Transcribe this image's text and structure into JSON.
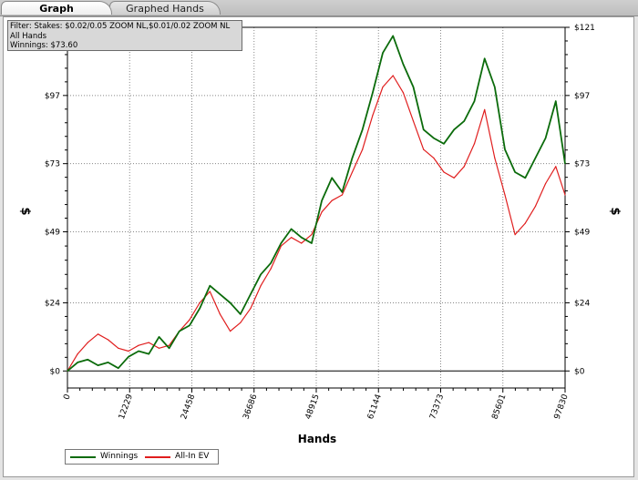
{
  "tabs": [
    {
      "label": "Graph",
      "active": true
    },
    {
      "label": "Graphed Hands",
      "active": false
    }
  ],
  "filter": {
    "lines": [
      "Filter: Stakes: $0.02/0.05 ZOOM NL,$0.01/0.02 ZOOM NL",
      "All Hands",
      "Winnings: $73.60"
    ]
  },
  "colors": {
    "winnings": "#0b6b0b",
    "all_in_ev": "#e01e1e",
    "grid": "#888888",
    "zero_line": "#000000"
  },
  "chart_data": {
    "type": "line",
    "xlabel": "Hands",
    "ylabel": "$",
    "xlim": [
      0,
      97830
    ],
    "ylim": [
      -6,
      121
    ],
    "x_ticks": [
      0,
      12229,
      24458,
      36686,
      48915,
      61144,
      73373,
      85601,
      97830
    ],
    "x_tick_labels": [
      "0",
      "12229",
      "24458",
      "36686",
      "48915",
      "61144",
      "73373",
      "85601",
      "97830"
    ],
    "y_ticks": [
      0,
      24,
      49,
      73,
      97,
      121
    ],
    "y_tick_labels": [
      "$0",
      "$24",
      "$49",
      "$73",
      "$97",
      "$121"
    ],
    "legend_position": "bottom-left",
    "grid": true,
    "series": [
      {
        "name": "Winnings",
        "x": [
          0,
          2000,
          4000,
          6000,
          8000,
          10000,
          12000,
          14000,
          16000,
          18000,
          20000,
          22000,
          24000,
          26000,
          28000,
          30000,
          32000,
          34000,
          36000,
          38000,
          40000,
          42000,
          44000,
          46000,
          48000,
          50000,
          52000,
          54000,
          56000,
          58000,
          60000,
          62000,
          64000,
          66000,
          68000,
          70000,
          72000,
          74000,
          76000,
          78000,
          80000,
          82000,
          84000,
          86000,
          88000,
          90000,
          92000,
          94000,
          96000,
          97830
        ],
        "values": [
          0,
          3,
          4,
          2,
          3,
          1,
          5,
          7,
          6,
          12,
          8,
          14,
          16,
          22,
          30,
          27,
          24,
          20,
          27,
          34,
          38,
          45,
          50,
          47,
          45,
          60,
          68,
          63,
          75,
          85,
          98,
          112,
          118,
          108,
          100,
          85,
          82,
          80,
          85,
          88,
          95,
          110,
          100,
          78,
          70,
          68,
          75,
          82,
          95,
          73
        ]
      },
      {
        "name": "All-In EV",
        "x": [
          0,
          2000,
          4000,
          6000,
          8000,
          10000,
          12000,
          14000,
          16000,
          18000,
          20000,
          22000,
          24000,
          26000,
          28000,
          30000,
          32000,
          34000,
          36000,
          38000,
          40000,
          42000,
          44000,
          46000,
          48000,
          50000,
          52000,
          54000,
          56000,
          58000,
          60000,
          62000,
          64000,
          66000,
          68000,
          70000,
          72000,
          74000,
          76000,
          78000,
          80000,
          82000,
          84000,
          86000,
          88000,
          90000,
          92000,
          94000,
          96000,
          97830
        ],
        "values": [
          0,
          6,
          10,
          13,
          11,
          8,
          7,
          9,
          10,
          8,
          9,
          14,
          18,
          24,
          28,
          20,
          14,
          17,
          22,
          30,
          36,
          44,
          47,
          45,
          48,
          56,
          60,
          62,
          70,
          78,
          90,
          100,
          104,
          98,
          88,
          78,
          75,
          70,
          68,
          72,
          80,
          92,
          75,
          62,
          48,
          52,
          58,
          66,
          72,
          62
        ]
      }
    ]
  }
}
